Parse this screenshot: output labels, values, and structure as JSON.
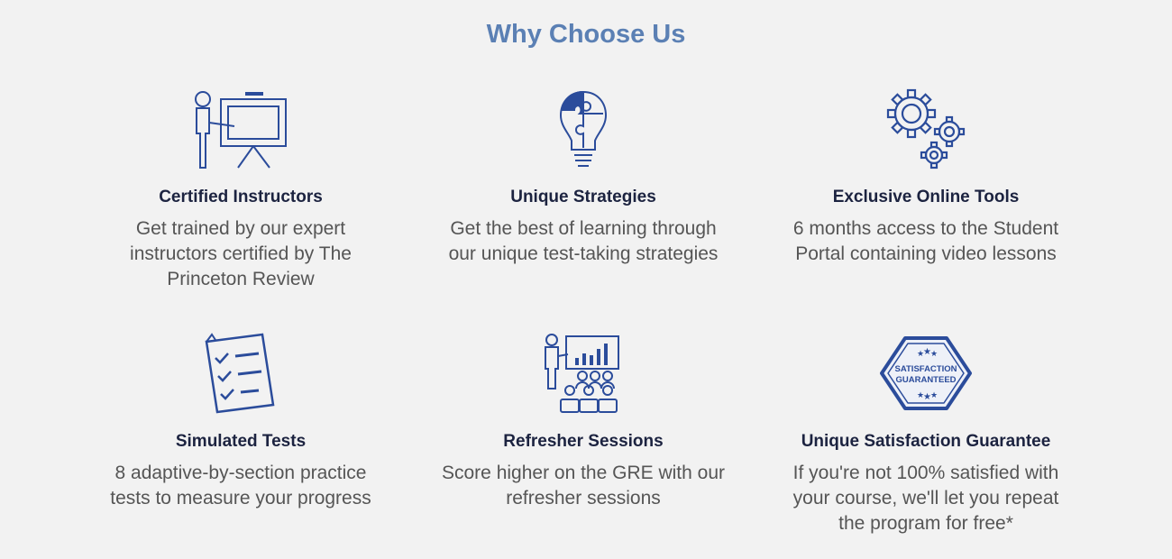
{
  "section": {
    "title": "Why Choose Us"
  },
  "features": [
    {
      "title": "Certified Instructors",
      "description": "Get trained by our expert instructors certified by The Princeton Review",
      "icon": "instructor-board-icon"
    },
    {
      "title": "Unique Strategies",
      "description": "Get the best of learning through our unique test-taking strategies",
      "icon": "lightbulb-puzzle-icon"
    },
    {
      "title": "Exclusive Online Tools",
      "description": "6 months access to the Student Portal containing video lessons",
      "icon": "gears-icon"
    },
    {
      "title": "Simulated Tests",
      "description": "8 adaptive-by-section practice tests to measure your progress",
      "icon": "checklist-icon"
    },
    {
      "title": "Refresher Sessions",
      "description": "Score higher on the GRE with our refresher sessions",
      "icon": "presentation-audience-icon"
    },
    {
      "title": "Unique Satisfaction Guarantee",
      "description": "If you're not 100% satisfied with your course, we'll let you repeat the program for free*",
      "icon": "satisfaction-badge-icon",
      "badge": {
        "line1": "SATISFACTION",
        "line2": "GUARANTEED"
      }
    }
  ],
  "colors": {
    "accent": "#5b80b4",
    "icon": "#2b4c9b",
    "title": "#1c2340",
    "text": "#555555",
    "background": "#f2f2f2"
  }
}
